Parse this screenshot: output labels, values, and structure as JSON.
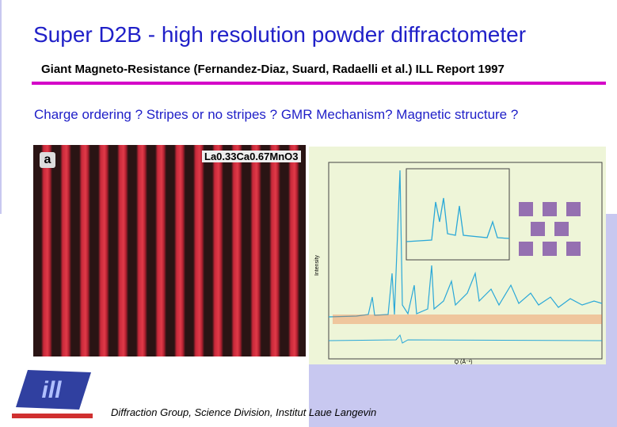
{
  "header": {
    "title": "Super D2B - high resolution powder diffractometer",
    "subtitle": "Giant Magneto-Resistance (Fernandez-Diaz, Suard, Radaelli et al.) ILL Report 1997"
  },
  "question": "Charge ordering ? Stripes or no stripes ? GMR Mechanism? Magnetic structure ?",
  "image_left": {
    "panel": "a",
    "compound": "La0.33Ca0.67MnO3"
  },
  "image_right": {
    "y_label": "Intensity",
    "x_label": "Q (Å⁻¹)"
  },
  "footer": "Diffraction Group, Science Division, Institut Laue Langevin"
}
